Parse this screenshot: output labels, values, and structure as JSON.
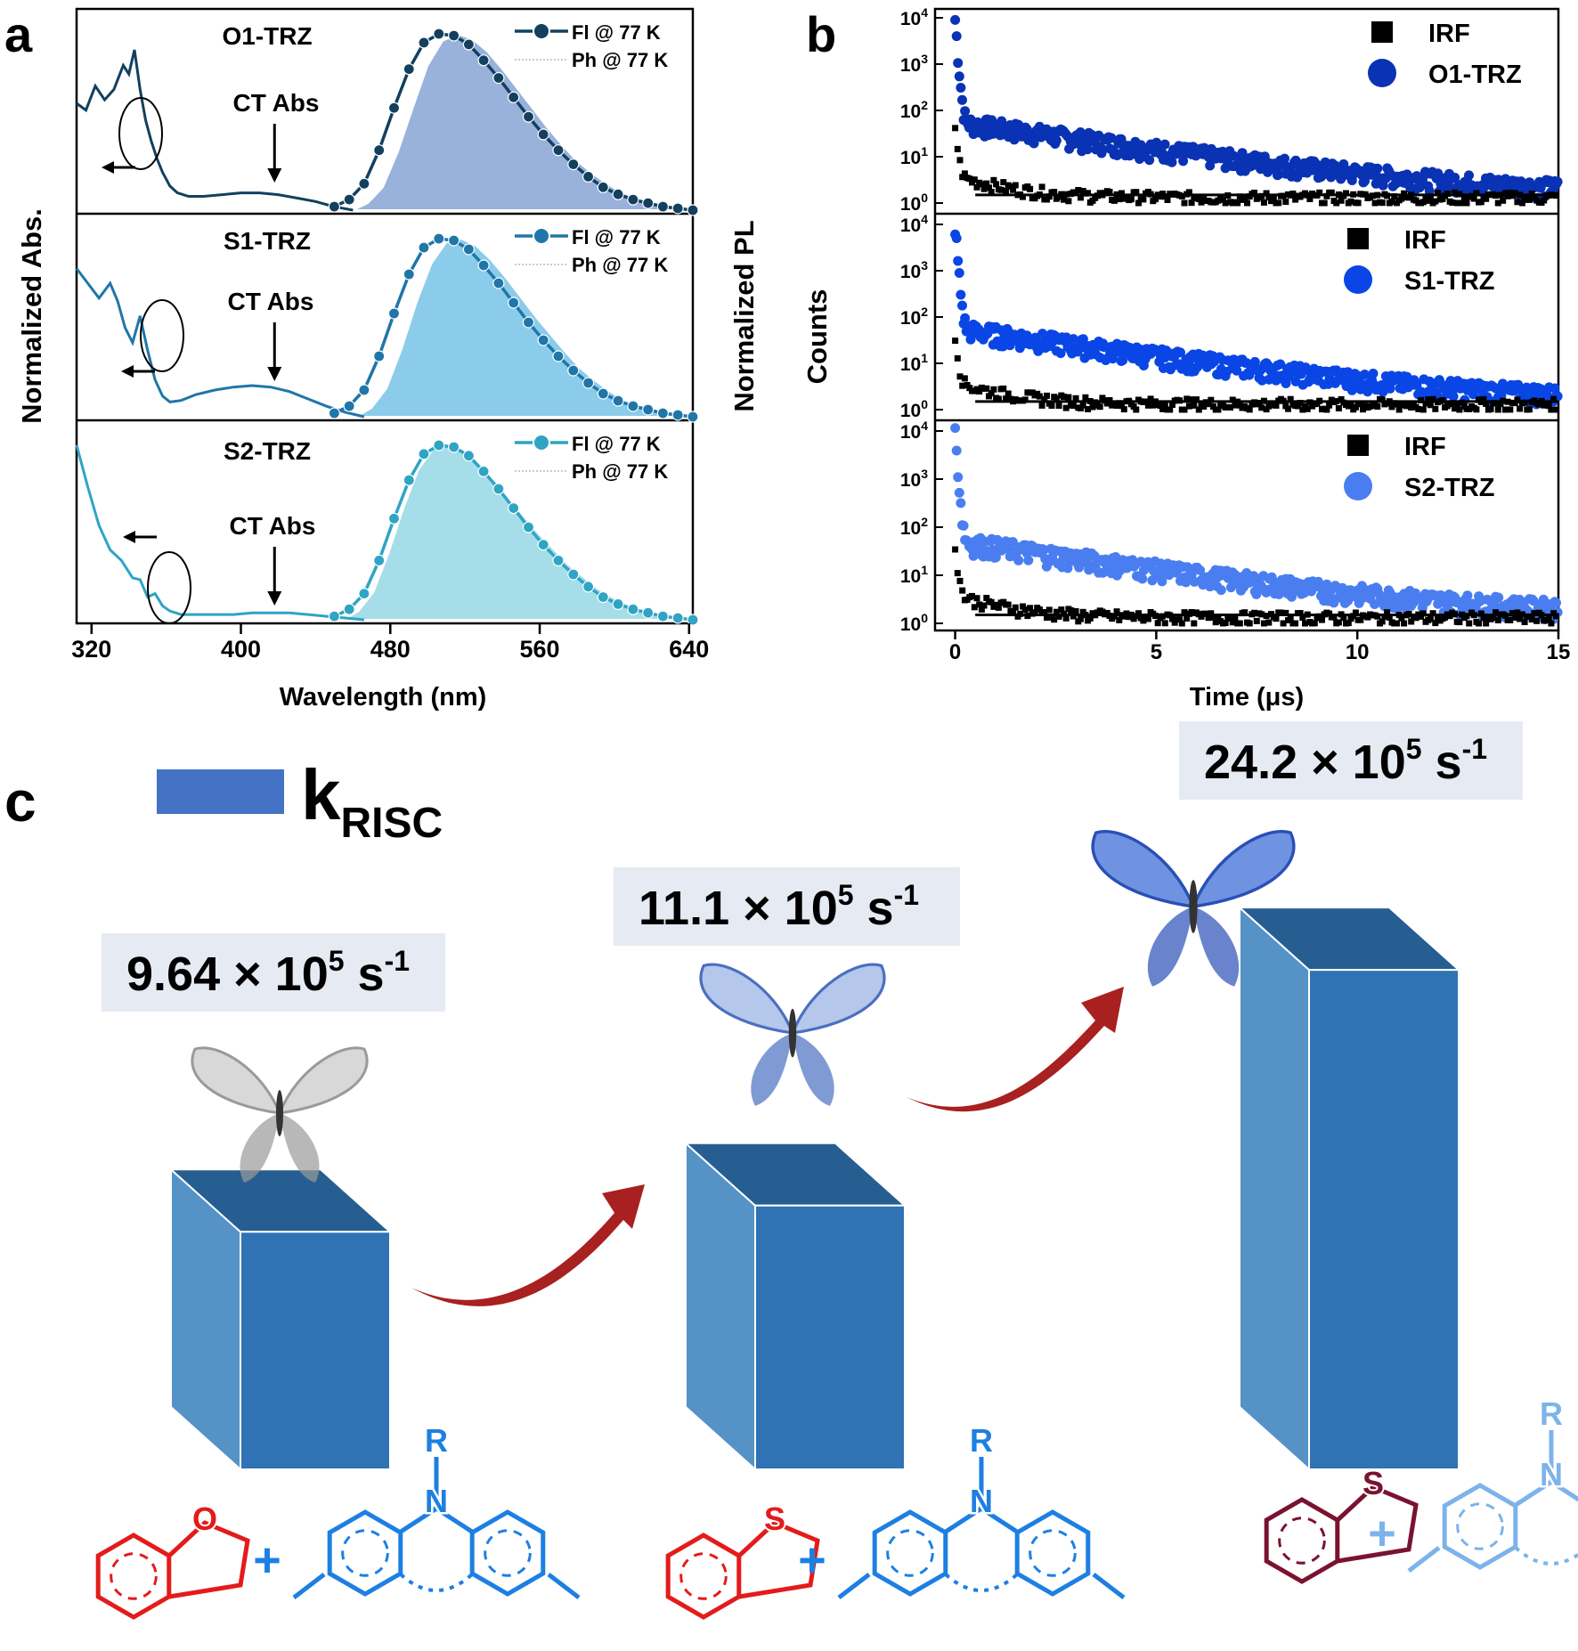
{
  "panel_letters": {
    "a": "a",
    "b": "b",
    "c": "c"
  },
  "colors": {
    "o1": "#12405e",
    "s1": "#1f76a8",
    "s2": "#2fa4c4",
    "o1_fill": "#7f9fd3",
    "s1_fill": "#6fbfe6",
    "s2_fill": "#8fd6e2",
    "b_o1": "#0a32b4",
    "b_s1": "#0a46e6",
    "b_s2": "#4a7ef0",
    "irf": "#000000",
    "bar_front": "#2f73b5",
    "bar_side": "#5592c6",
    "bar_top": "#265e91",
    "arrow": "#a82020",
    "label_bg": "#e6eaf2",
    "mol_red": "#e41b1b",
    "mol_blue": "#1d7fe2",
    "mol_dark": "#7a1230",
    "mol_light": "#7cb3ea"
  },
  "chart_data": [
    {
      "id": "a",
      "type": "line",
      "xlabel": "Wavelength (nm)",
      "ylabel_left": "Normalized Abs.",
      "ylabel_right": "Normalized PL",
      "xlim": [
        312,
        642
      ],
      "xticks": [
        320,
        400,
        480,
        560,
        640
      ],
      "panels": [
        {
          "title": "O1-TRZ",
          "legend": [
            "Fl @ 77 K",
            "Ph @ 77 K"
          ],
          "annotation": "CT Abs",
          "abs": {
            "x": [
              312,
              317,
              322,
              327,
              332,
              337,
              340,
              343,
              346,
              349,
              352,
              355,
              358,
              362,
              366,
              372,
              380,
              390,
              400,
              410,
              420,
              430,
              440,
              450,
              460
            ],
            "y": [
              0.62,
              0.58,
              0.72,
              0.64,
              0.7,
              0.84,
              0.79,
              0.93,
              0.7,
              0.52,
              0.4,
              0.3,
              0.22,
              0.14,
              0.1,
              0.08,
              0.08,
              0.09,
              0.1,
              0.1,
              0.09,
              0.07,
              0.05,
              0.02,
              0.0
            ]
          },
          "fl": {
            "x": [
              450,
              458,
              466,
              474,
              482,
              490,
              498,
              506,
              514,
              522,
              530,
              538,
              546,
              554,
              562,
              570,
              578,
              586,
              594,
              602,
              610,
              618,
              626,
              634,
              642
            ],
            "y": [
              0.02,
              0.06,
              0.15,
              0.34,
              0.58,
              0.8,
              0.95,
              1.0,
              0.99,
              0.94,
              0.85,
              0.75,
              0.64,
              0.53,
              0.43,
              0.34,
              0.26,
              0.19,
              0.13,
              0.09,
              0.06,
              0.04,
              0.02,
              0.01,
              0.0
            ]
          },
          "ph": {
            "x": [
              460,
              468,
              476,
              484,
              492,
              500,
              508,
              516,
              524,
              532,
              540,
              548,
              556,
              564,
              572,
              580,
              588,
              596,
              604,
              612,
              620,
              628,
              636,
              642
            ],
            "y": [
              0.0,
              0.04,
              0.13,
              0.33,
              0.58,
              0.82,
              0.96,
              1.0,
              0.97,
              0.9,
              0.8,
              0.69,
              0.58,
              0.47,
              0.37,
              0.28,
              0.21,
              0.15,
              0.1,
              0.07,
              0.04,
              0.02,
              0.01,
              0.0
            ]
          }
        },
        {
          "title": "S1-TRZ",
          "legend": [
            "Fl @ 77 K",
            "Ph @ 77 K"
          ],
          "annotation": "CT Abs",
          "abs": {
            "x": [
              312,
              318,
              324,
              330,
              334,
              338,
              342,
              346,
              350,
              354,
              358,
              362,
              368,
              376,
              386,
              396,
              406,
              416,
              426,
              436,
              446,
              456,
              466
            ],
            "y": [
              1.0,
              0.9,
              0.8,
              0.9,
              0.78,
              0.6,
              0.5,
              0.68,
              0.45,
              0.25,
              0.14,
              0.1,
              0.11,
              0.15,
              0.18,
              0.2,
              0.21,
              0.2,
              0.17,
              0.12,
              0.07,
              0.03,
              0.0
            ]
          },
          "fl": {
            "x": [
              450,
              458,
              466,
              474,
              482,
              490,
              498,
              506,
              514,
              522,
              530,
              538,
              546,
              554,
              562,
              570,
              578,
              586,
              594,
              602,
              610,
              618,
              626,
              634,
              642
            ],
            "y": [
              0.02,
              0.06,
              0.15,
              0.34,
              0.58,
              0.8,
              0.95,
              1.0,
              0.99,
              0.94,
              0.85,
              0.75,
              0.64,
              0.53,
              0.43,
              0.34,
              0.26,
              0.19,
              0.13,
              0.09,
              0.06,
              0.04,
              0.02,
              0.01,
              0.0
            ]
          },
          "ph": {
            "x": [
              462,
              470,
              478,
              486,
              494,
              502,
              510,
              518,
              526,
              534,
              542,
              550,
              558,
              566,
              574,
              582,
              590,
              598,
              606,
              614,
              622,
              630,
              638,
              642
            ],
            "y": [
              0.0,
              0.05,
              0.16,
              0.38,
              0.64,
              0.86,
              0.98,
              1.0,
              0.96,
              0.88,
              0.78,
              0.67,
              0.56,
              0.46,
              0.36,
              0.27,
              0.2,
              0.14,
              0.09,
              0.06,
              0.04,
              0.02,
              0.01,
              0.0
            ]
          }
        },
        {
          "title": "S2-TRZ",
          "legend": [
            "Fl @ 77 K",
            "Ph @ 77 K"
          ],
          "annotation": "CT Abs",
          "abs": {
            "x": [
              312,
              318,
              324,
              330,
              336,
              342,
              346,
              350,
              354,
              358,
              362,
              368,
              376,
              386,
              396,
              406,
              416,
              426,
              436,
              446,
              456,
              466
            ],
            "y": [
              1.0,
              0.76,
              0.54,
              0.4,
              0.34,
              0.24,
              0.23,
              0.13,
              0.15,
              0.08,
              0.05,
              0.03,
              0.03,
              0.03,
              0.03,
              0.04,
              0.04,
              0.04,
              0.03,
              0.02,
              0.01,
              0.0
            ]
          },
          "fl": {
            "x": [
              450,
              458,
              466,
              474,
              482,
              490,
              498,
              506,
              514,
              522,
              530,
              538,
              546,
              554,
              562,
              570,
              578,
              586,
              594,
              602,
              610,
              618,
              626,
              634,
              642
            ],
            "y": [
              0.02,
              0.06,
              0.15,
              0.34,
              0.58,
              0.8,
              0.95,
              1.0,
              0.99,
              0.94,
              0.85,
              0.75,
              0.64,
              0.53,
              0.43,
              0.34,
              0.26,
              0.19,
              0.13,
              0.09,
              0.06,
              0.04,
              0.02,
              0.01,
              0.0
            ]
          },
          "ph": {
            "x": [
              455,
              463,
              471,
              479,
              487,
              495,
              503,
              511,
              519,
              527,
              535,
              543,
              551,
              559,
              567,
              575,
              583,
              591,
              599,
              607,
              615,
              623,
              631,
              639,
              642
            ],
            "y": [
              0.0,
              0.05,
              0.16,
              0.38,
              0.64,
              0.86,
              0.98,
              1.0,
              0.96,
              0.89,
              0.8,
              0.7,
              0.6,
              0.5,
              0.41,
              0.32,
              0.25,
              0.18,
              0.13,
              0.09,
              0.06,
              0.04,
              0.02,
              0.01,
              0.0
            ]
          }
        }
      ]
    },
    {
      "id": "b",
      "type": "scatter",
      "xlabel": "Time (μs)",
      "ylabel": "Counts",
      "scale_y": "log",
      "xlim": [
        -0.5,
        15
      ],
      "ylim": [
        1,
        10000
      ],
      "xticks": [
        0,
        5,
        10,
        15
      ],
      "yticks": [
        "10",
        "10",
        "10",
        "10",
        "10"
      ],
      "yexps": [
        "0",
        "1",
        "2",
        "3",
        "4"
      ],
      "panels": [
        {
          "legend": [
            "IRF",
            "O1-TRZ"
          ],
          "decay": {
            "A1": 9000,
            "tau1": 0.04,
            "A2": 55,
            "tau2": 3.5,
            "base": 1.4
          }
        },
        {
          "legend": [
            "IRF",
            "S1-TRZ"
          ],
          "decay": {
            "A1": 9000,
            "tau1": 0.04,
            "A2": 55,
            "tau2": 3.5,
            "base": 1.4
          }
        },
        {
          "legend": [
            "IRF",
            "S2-TRZ"
          ],
          "decay": {
            "A1": 9000,
            "tau1": 0.04,
            "A2": 50,
            "tau2": 3.5,
            "base": 1.4
          }
        }
      ]
    },
    {
      "id": "c",
      "type": "bar",
      "legend_label": "k",
      "legend_sub": "RISC",
      "categories": [
        "O1-TRZ",
        "S1-TRZ",
        "S2-TRZ"
      ],
      "values": [
        9.64,
        11.1,
        24.2
      ],
      "value_unit": "× 10^5 s^-1",
      "labels": [
        {
          "num": "9.64",
          "times": "×",
          "base": "10",
          "exp": "5",
          "unit": "s",
          "uexp": "-1"
        },
        {
          "num": "11.1",
          "times": "×",
          "base": "10",
          "exp": "5",
          "unit": "s",
          "uexp": "-1"
        },
        {
          "num": "24.2",
          "times": "×",
          "base": "10",
          "exp": "5",
          "unit": "s",
          "uexp": "-1"
        }
      ]
    }
  ],
  "molecules": {
    "heteroatoms": [
      "O",
      "S",
      "S"
    ],
    "substituent": "R",
    "nitrogen": "N",
    "plus": "+"
  }
}
